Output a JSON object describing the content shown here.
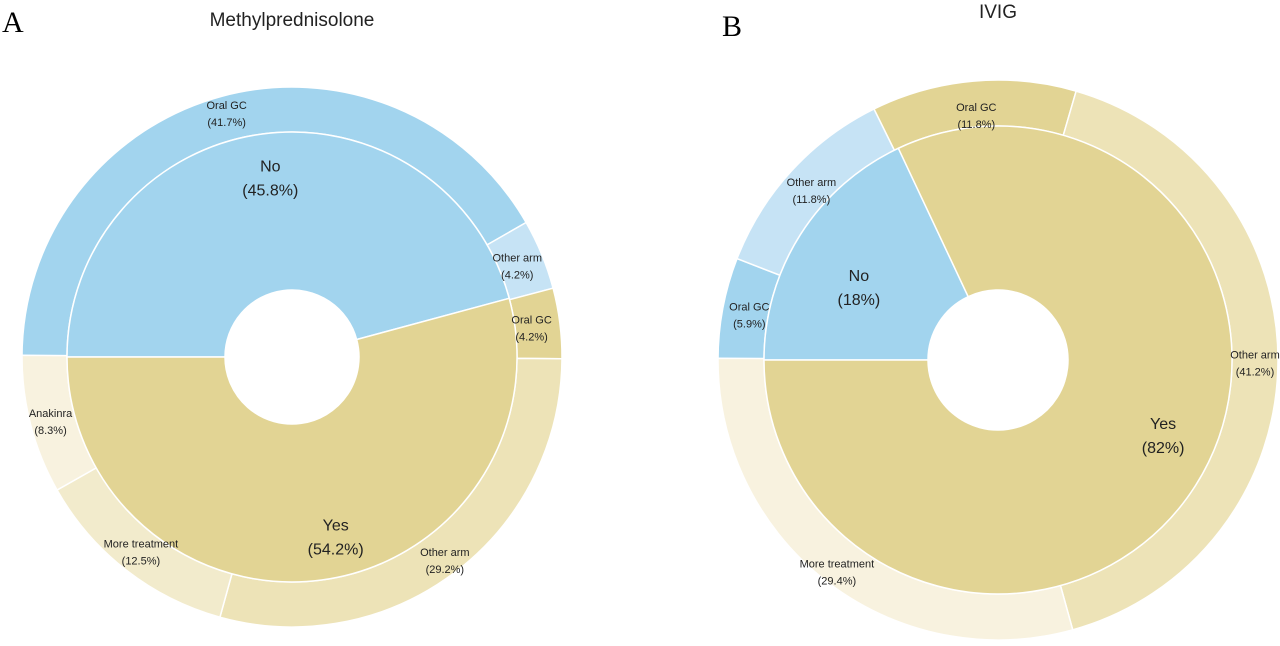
{
  "chart_data": [
    {
      "type": "pie",
      "panel": "A",
      "title": "Methylprednisolone",
      "inner": [
        {
          "name": "No",
          "value": 45.8,
          "label": "(45.8%)",
          "color": "#A2D4EE"
        },
        {
          "name": "Yes",
          "value": 54.2,
          "label": "(54.2%)",
          "color": "#E2D494"
        }
      ],
      "outer": [
        {
          "name": "Oral GC",
          "value": 41.7,
          "label": "(41.7%)",
          "group": "No",
          "color": "#A2D4EE"
        },
        {
          "name": "Other arm",
          "value": 4.2,
          "label": "(4.2%)",
          "group": "No",
          "color": "#C6E3F5"
        },
        {
          "name": "Oral GC",
          "value": 4.2,
          "label": "(4.2%)",
          "group": "Yes",
          "color": "#E2D494"
        },
        {
          "name": "Other arm",
          "value": 29.2,
          "label": "(29.2%)",
          "group": "Yes",
          "color": "#EDE3B7"
        },
        {
          "name": "More treatment",
          "value": 12.5,
          "label": "(12.5%)",
          "group": "Yes",
          "color": "#F2EBCC"
        },
        {
          "name": "Anakinra",
          "value": 8.3,
          "label": "(8.3%)",
          "group": "Yes",
          "color": "#F8F2DF"
        }
      ]
    },
    {
      "type": "pie",
      "panel": "B",
      "title": "IVIG",
      "inner": [
        {
          "name": "No",
          "value": 18,
          "label": "(18%)",
          "color": "#A2D4EE"
        },
        {
          "name": "Yes",
          "value": 82,
          "label": "(82%)",
          "color": "#E2D494"
        }
      ],
      "outer": [
        {
          "name": "Oral GC",
          "value": 5.9,
          "label": "(5.9%)",
          "group": "No",
          "color": "#A2D4EE"
        },
        {
          "name": "Other arm",
          "value": 11.8,
          "label": "(11.8%)",
          "group": "No",
          "color": "#C6E3F5"
        },
        {
          "name": "Oral GC",
          "value": 11.8,
          "label": "(11.8%)",
          "group": "Yes",
          "color": "#E2D494"
        },
        {
          "name": "Other arm",
          "value": 41.2,
          "label": "(41.2%)",
          "group": "Yes",
          "color": "#EDE3B7"
        },
        {
          "name": "More treatment",
          "value": 29.4,
          "label": "(29.4%)",
          "group": "Yes",
          "color": "#F8F2DF"
        }
      ]
    }
  ]
}
